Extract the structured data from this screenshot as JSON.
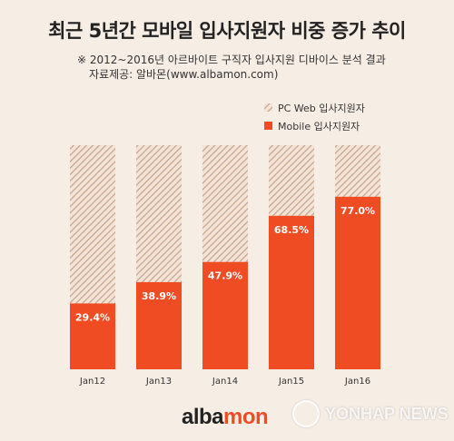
{
  "header": {
    "title": "최근 5년간 모바일 입사지원자 비중 증가 추이",
    "note_line1": "※ 2012~2016년 아르바이트 구직자 입사지원 디바이스 분석 결과",
    "note_line2": "자료제공: 알바몬(www.albamon.com)"
  },
  "brand": {
    "logo_part1": "alba",
    "logo_part2": "mon",
    "watermark": "YONHAP NEWS"
  },
  "colors": {
    "mobile": "#f04c23",
    "pc_stripe": "#c9a08a",
    "background": "#f6ede5"
  },
  "chart_data": {
    "type": "bar",
    "stacked": true,
    "categories": [
      "Jan12",
      "Jan13",
      "Jan14",
      "Jan15",
      "Jan16"
    ],
    "series": [
      {
        "name": "Mobile 입사지원자",
        "values": [
          29.4,
          38.9,
          47.9,
          68.5,
          77.0
        ]
      },
      {
        "name": "PC Web 입사지원자",
        "values": [
          70.6,
          61.1,
          52.1,
          31.5,
          23.0
        ]
      }
    ],
    "labels": [
      "29.4%",
      "38.9%",
      "47.9%",
      "68.5%",
      "77.0%"
    ],
    "ylim": [
      0,
      100
    ],
    "legend": "top-right",
    "grid": false
  }
}
